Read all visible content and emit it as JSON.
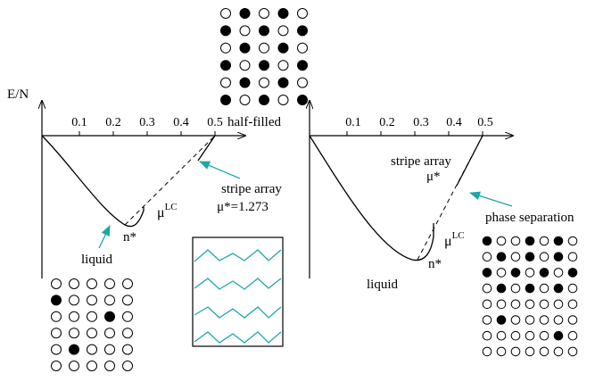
{
  "colors": {
    "ink": "#000000",
    "accent": "#1fa7a9",
    "background": "#ffffff"
  },
  "left_panel": {
    "y_axis_label": "E/N",
    "x_ticks": [
      "0.1",
      "0.2",
      "0.3",
      "0.4",
      "0.5"
    ],
    "half_filled_label": "half-filled",
    "liquid_label": "liquid",
    "n_star_label": "n*",
    "mu_lc_base": "μ",
    "mu_lc_sup": "LC",
    "stripe_array_label": "stripe array",
    "stripe_mu_label": "μ*=1.273"
  },
  "right_panel": {
    "x_ticks": [
      "0.1",
      "0.2",
      "0.3",
      "0.4",
      "0.5"
    ],
    "stripe_array_label": "stripe array",
    "mu_star_label": "μ*",
    "phase_separation_label": "phase separation",
    "n_star_label": "n*",
    "mu_lc_base": "μ",
    "mu_lc_sup": "LC",
    "liquid_label": "liquid"
  },
  "lattices": {
    "top_checkerboard": {
      "rows": [
        [
          0,
          1,
          0,
          1,
          0
        ],
        [
          1,
          0,
          1,
          0,
          1
        ],
        [
          0,
          1,
          0,
          1,
          0
        ],
        [
          1,
          0,
          1,
          0,
          1
        ],
        [
          0,
          1,
          0,
          1,
          0
        ],
        [
          1,
          0,
          1,
          0,
          1
        ]
      ]
    },
    "bottom_left_liquid": {
      "rows": [
        [
          0,
          0,
          0,
          0,
          0
        ],
        [
          1,
          0,
          0,
          0,
          0
        ],
        [
          0,
          0,
          0,
          1,
          0
        ],
        [
          0,
          0,
          0,
          0,
          0
        ],
        [
          0,
          1,
          0,
          0,
          0
        ],
        [
          0,
          0,
          0,
          0,
          0
        ]
      ]
    },
    "bottom_right_phase_sep": {
      "rows": [
        [
          1,
          0,
          0,
          1,
          0,
          1,
          0
        ],
        [
          0,
          1,
          0,
          1,
          0,
          1,
          0
        ],
        [
          1,
          0,
          1,
          0,
          1,
          0,
          1
        ],
        [
          0,
          1,
          0,
          1,
          0,
          1,
          0
        ],
        [
          0,
          0,
          0,
          0,
          0,
          0,
          0
        ],
        [
          0,
          1,
          0,
          0,
          0,
          0,
          0
        ],
        [
          0,
          0,
          0,
          0,
          0,
          1,
          0
        ],
        [
          0,
          0,
          0,
          0,
          0,
          0,
          0
        ]
      ]
    }
  }
}
